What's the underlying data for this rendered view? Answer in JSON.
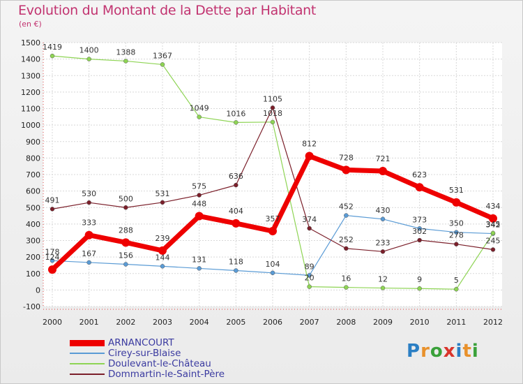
{
  "header": {
    "title": "Evolution du Montant de la Dette par Habitant",
    "unit": "(en €)"
  },
  "brand": {
    "text": "Proxiti",
    "letters": [
      {
        "ch": "P",
        "color": "#2b7fc4"
      },
      {
        "ch": "r",
        "color": "#e8912c"
      },
      {
        "ch": "o",
        "color": "#3aa13a"
      },
      {
        "ch": "x",
        "color": "#d9342b"
      },
      {
        "ch": "i",
        "color": "#2b7fc4"
      },
      {
        "ch": "t",
        "color": "#e8912c"
      },
      {
        "ch": "i",
        "color": "#3aa13a"
      }
    ]
  },
  "chart_data": {
    "type": "line",
    "title": "Evolution du Montant de la Dette par Habitant",
    "ylabel": "(en €)",
    "xlabel": "",
    "x": [
      "2000",
      "2001",
      "2002",
      "2003",
      "2004",
      "2005",
      "2006",
      "2007",
      "2008",
      "2009",
      "2010",
      "2011",
      "2012"
    ],
    "ylim": [
      -100,
      1500
    ],
    "yticks": [
      -100,
      0,
      100,
      200,
      300,
      400,
      500,
      600,
      700,
      800,
      900,
      1000,
      1100,
      1200,
      1300,
      1400,
      1500
    ],
    "grid": true,
    "legend_position": "bottom-left",
    "series": [
      {
        "name": "ARNANCOURT",
        "color": "#ee0000",
        "width": 7,
        "values": [
          124,
          333,
          288,
          239,
          448,
          404,
          357,
          812,
          728,
          721,
          623,
          531,
          434
        ]
      },
      {
        "name": "Cirey-sur-Blaise",
        "color": "#5a9bd5",
        "width": 1.2,
        "values": [
          178,
          167,
          156,
          144,
          131,
          118,
          104,
          89,
          452,
          430,
          373,
          350,
          342
        ]
      },
      {
        "name": "Doulevant-le-Château",
        "color": "#8ed454",
        "width": 1.2,
        "values": [
          1419,
          1400,
          1388,
          1367,
          1049,
          1016,
          1018,
          20,
          16,
          12,
          9,
          5,
          345
        ]
      },
      {
        "name": "Dommartin-le-Saint-Père",
        "color": "#7b1f2a",
        "width": 1.2,
        "values": [
          491,
          530,
          500,
          531,
          575,
          636,
          1105,
          374,
          252,
          233,
          302,
          278,
          245
        ]
      }
    ]
  }
}
